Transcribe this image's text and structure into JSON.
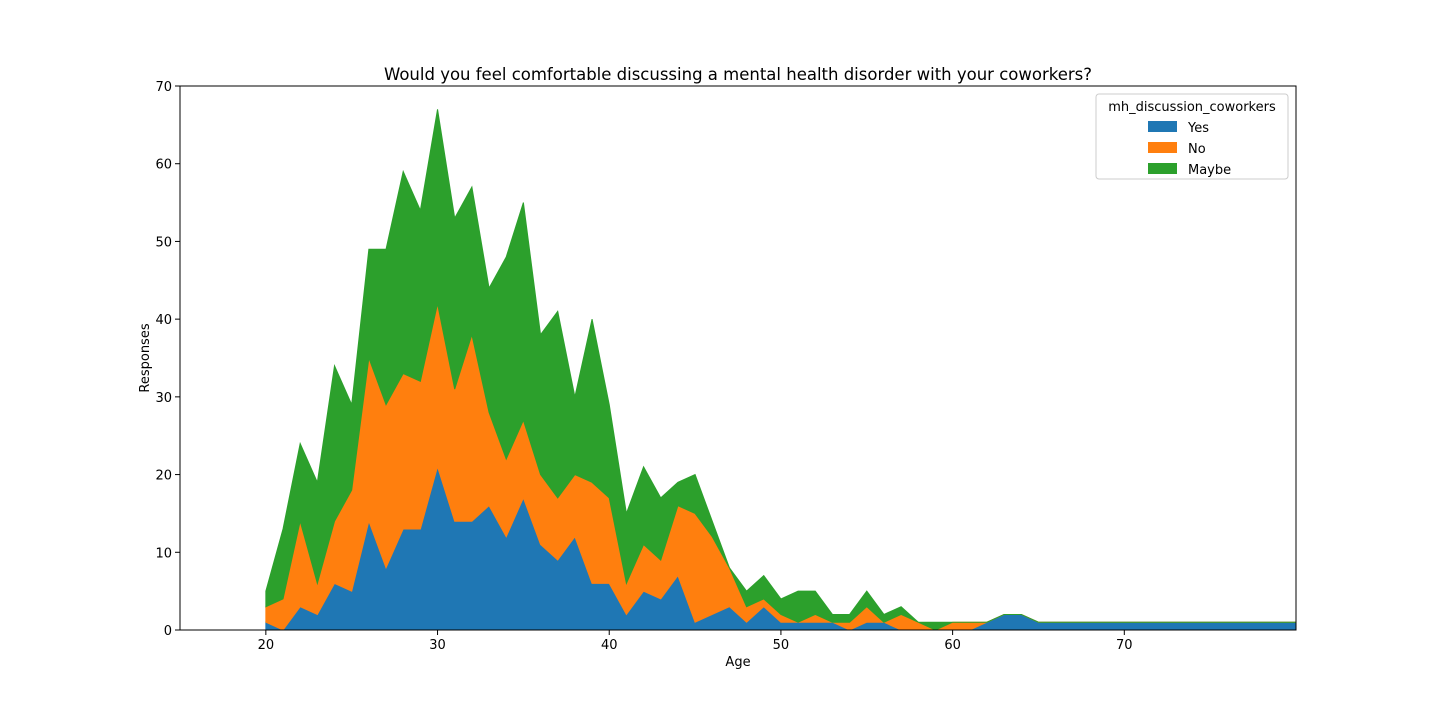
{
  "chart_data": {
    "type": "area",
    "stacked": true,
    "title": "Would you feel comfortable discussing a mental health disorder with your coworkers?",
    "xlabel": "Age",
    "ylabel": "Responses",
    "xlim": [
      15,
      80
    ],
    "ylim": [
      0,
      70
    ],
    "xticks": [
      20,
      30,
      40,
      50,
      60,
      70
    ],
    "yticks": [
      0,
      10,
      20,
      30,
      40,
      50,
      60,
      70
    ],
    "grid": false,
    "legend": {
      "title": "mh_discussion_coworkers",
      "placement": "top-right"
    },
    "x": [
      20,
      21,
      22,
      23,
      24,
      25,
      26,
      27,
      28,
      29,
      30,
      31,
      32,
      33,
      34,
      35,
      36,
      37,
      38,
      39,
      40,
      41,
      42,
      43,
      44,
      45,
      46,
      47,
      48,
      49,
      50,
      51,
      52,
      53,
      54,
      55,
      56,
      57,
      58,
      59,
      60,
      61,
      62,
      63,
      64,
      65,
      66,
      67,
      68,
      69,
      70,
      71,
      72,
      73,
      74,
      75,
      76,
      77,
      78,
      79,
      80
    ],
    "series": [
      {
        "name": "Yes",
        "color": "#1f77b4",
        "values": [
          1,
          0,
          3,
          2,
          6,
          5,
          14,
          8,
          13,
          13,
          21,
          14,
          14,
          16,
          12,
          17,
          11,
          9,
          12,
          6,
          6,
          2,
          5,
          4,
          7,
          1,
          2,
          3,
          1,
          3,
          1,
          1,
          1,
          1,
          0,
          1,
          1,
          0,
          0,
          0,
          0,
          0,
          1,
          2,
          2,
          1,
          1,
          1,
          1,
          1,
          1,
          1,
          1,
          1,
          1,
          1,
          1,
          1,
          1,
          1,
          1
        ]
      },
      {
        "name": "No",
        "color": "#ff7f0e",
        "values": [
          2,
          4,
          11,
          4,
          8,
          13,
          21,
          21,
          20,
          19,
          21,
          17,
          24,
          12,
          10,
          10,
          9,
          8,
          8,
          13,
          11,
          4,
          6,
          5,
          9,
          14,
          10,
          5,
          2,
          1,
          1,
          0,
          1,
          0,
          1,
          2,
          0,
          2,
          1,
          0,
          1,
          1,
          0,
          0,
          0,
          0,
          0,
          0,
          0,
          0,
          0,
          0,
          0,
          0,
          0,
          0,
          0,
          0,
          0,
          0,
          0
        ]
      },
      {
        "name": "Maybe",
        "color": "#2ca02c",
        "values": [
          2,
          9,
          10,
          13,
          20,
          11,
          14,
          20,
          26,
          22,
          25,
          22,
          19,
          16,
          26,
          28,
          18,
          24,
          10,
          21,
          12,
          9,
          10,
          8,
          3,
          5,
          2,
          0,
          2,
          3,
          2,
          4,
          3,
          1,
          1,
          2,
          1,
          1,
          0,
          1,
          0,
          0,
          0,
          0,
          0,
          0,
          0,
          0,
          0,
          0,
          0,
          0,
          0,
          0,
          0,
          0,
          0,
          0,
          0,
          0,
          0
        ]
      }
    ]
  }
}
